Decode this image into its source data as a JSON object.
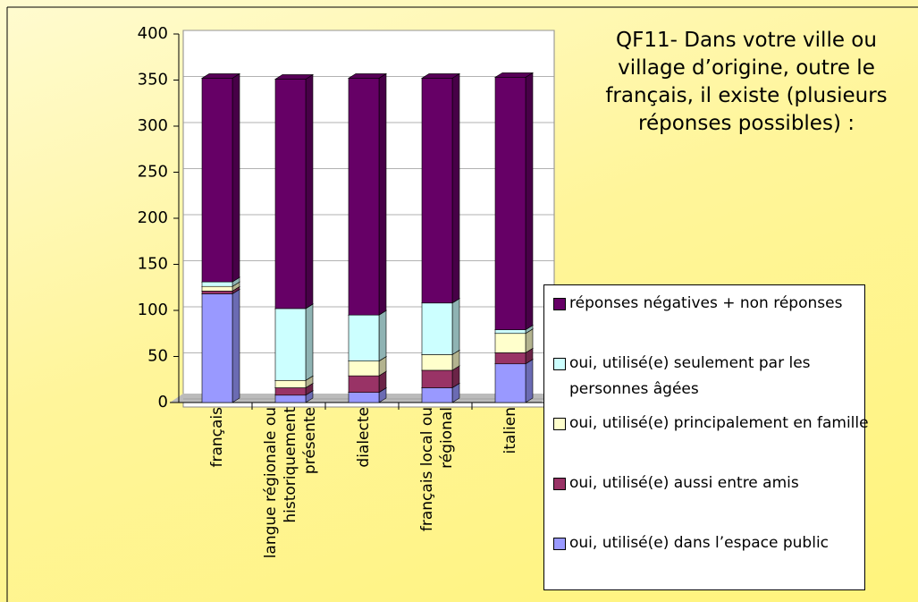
{
  "chart_data": {
    "type": "bar3d_stacked",
    "title": "QF11- Dans votre ville ou village d’origine, outre le français, il existe (plusieurs réponses possibles) :",
    "categories": [
      "français",
      "langue régionale ou historiquement présente",
      "dialecte",
      "français local ou régional",
      "italien"
    ],
    "series": [
      {
        "name": "oui, utilisé(e) dans l’espace public",
        "color": "#9999ff",
        "values": [
          118,
          8,
          11,
          16,
          42
        ]
      },
      {
        "name": "oui, utilisé(e) aussi entre amis",
        "color": "#993366",
        "values": [
          3,
          8,
          18,
          19,
          12
        ]
      },
      {
        "name": "oui, utilisé(e) principalement en famille",
        "color": "#ffffcc",
        "values": [
          5,
          8,
          16,
          17,
          21
        ]
      },
      {
        "name": "oui, utilisé(e) seulement par les personnes âgées",
        "color": "#ccffff",
        "values": [
          5,
          78,
          50,
          56,
          4
        ]
      },
      {
        "name": "réponses négatives  + non réponses",
        "color": "#660066",
        "values": [
          221,
          249,
          257,
          244,
          274
        ]
      }
    ],
    "ylim": [
      0,
      400
    ],
    "yticks": [
      0,
      50,
      100,
      150,
      200,
      250,
      300,
      350,
      400
    ],
    "grid": true,
    "legend": "right"
  }
}
